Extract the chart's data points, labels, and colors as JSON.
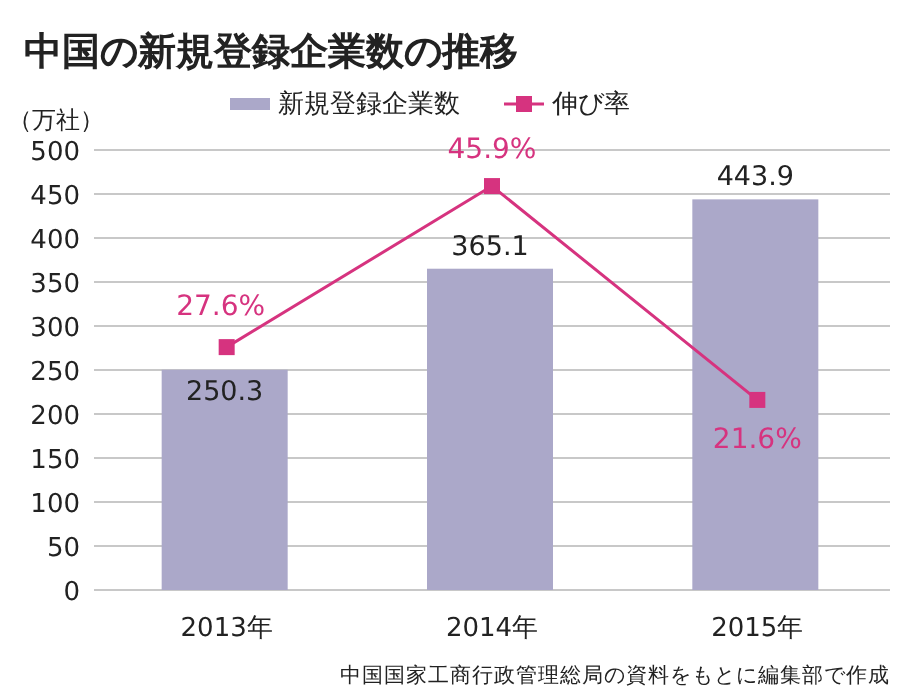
{
  "chart_data": {
    "type": "bar",
    "title": "中国の新規登録企業数の推移",
    "ylabel": "（万社）",
    "categories": [
      "2013年",
      "2014年",
      "2015年"
    ],
    "series": [
      {
        "name": "新規登録企業数",
        "color": "#aba8c9",
        "values": [
          250.3,
          365.1,
          443.9
        ],
        "value_labels": [
          "250.3",
          "365.1",
          "443.9"
        ]
      },
      {
        "name": "伸び率",
        "type": "line",
        "axis": "y2",
        "color": "#d6337f",
        "marker": "square",
        "values": [
          27.6,
          45.9,
          21.6
        ],
        "value_labels": [
          "27.6%",
          "45.9%",
          "21.6%"
        ]
      }
    ],
    "ylim": [
      0,
      500
    ],
    "yticks": [
      0,
      50,
      100,
      150,
      200,
      250,
      300,
      350,
      400,
      450,
      500
    ],
    "y2lim": [
      0,
      50
    ],
    "grid": "y",
    "legend": "top",
    "tick_labels": "xy",
    "annotations": [
      "中国国家工商行政管理総局の資料をもとに編集部で作成"
    ]
  }
}
